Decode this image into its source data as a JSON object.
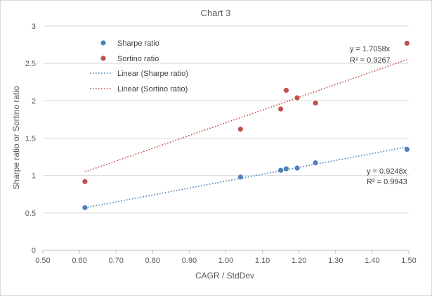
{
  "chart_data": {
    "type": "scatter",
    "title": "Chart 3",
    "xlabel": "CAGR / StdDev",
    "ylabel": "Sharpe ratio or Sortino ratio",
    "xlim": [
      0.5,
      1.5
    ],
    "ylim": [
      0,
      3
    ],
    "xticks": [
      0.5,
      0.6,
      0.7,
      0.8,
      0.9,
      1.0,
      1.1,
      1.2,
      1.3,
      1.4,
      1.5
    ],
    "xtick_labels": [
      "0.50",
      "0.60",
      "0.70",
      "0.80",
      "0.90",
      "1.00",
      "1.10",
      "1.20",
      "1.30",
      "1.40",
      "1.50"
    ],
    "yticks": [
      0,
      0.5,
      1,
      1.5,
      2,
      2.5,
      3
    ],
    "ytick_labels": [
      "0",
      "0.5",
      "1",
      "1.5",
      "2",
      "2.5",
      "3"
    ],
    "grid": "horizontal",
    "legend_position": "top-left",
    "series": [
      {
        "name": "Sharpe ratio",
        "color": "#4f81bd",
        "x": [
          0.615,
          1.04,
          1.15,
          1.165,
          1.195,
          1.245,
          1.495
        ],
        "y": [
          0.57,
          0.98,
          1.07,
          1.09,
          1.1,
          1.17,
          1.35
        ],
        "trendline": {
          "name": "Linear (Sharpe ratio)",
          "slope": 0.9248,
          "x_range": [
            0.615,
            1.495
          ],
          "equation": "y = 0.9248x",
          "r2": "R² = 0.9943"
        }
      },
      {
        "name": "Sortino ratio",
        "color": "#c0504d",
        "x": [
          0.615,
          1.04,
          1.15,
          1.165,
          1.195,
          1.245,
          1.495
        ],
        "y": [
          0.92,
          1.62,
          1.89,
          2.14,
          2.04,
          1.97,
          2.77
        ],
        "trendline": {
          "name": "Linear (Sortino ratio)",
          "slope": 1.7058,
          "x_range": [
            0.615,
            1.495
          ],
          "equation": "y = 1.7058x",
          "r2": "R² = 0.9267"
        }
      }
    ]
  }
}
